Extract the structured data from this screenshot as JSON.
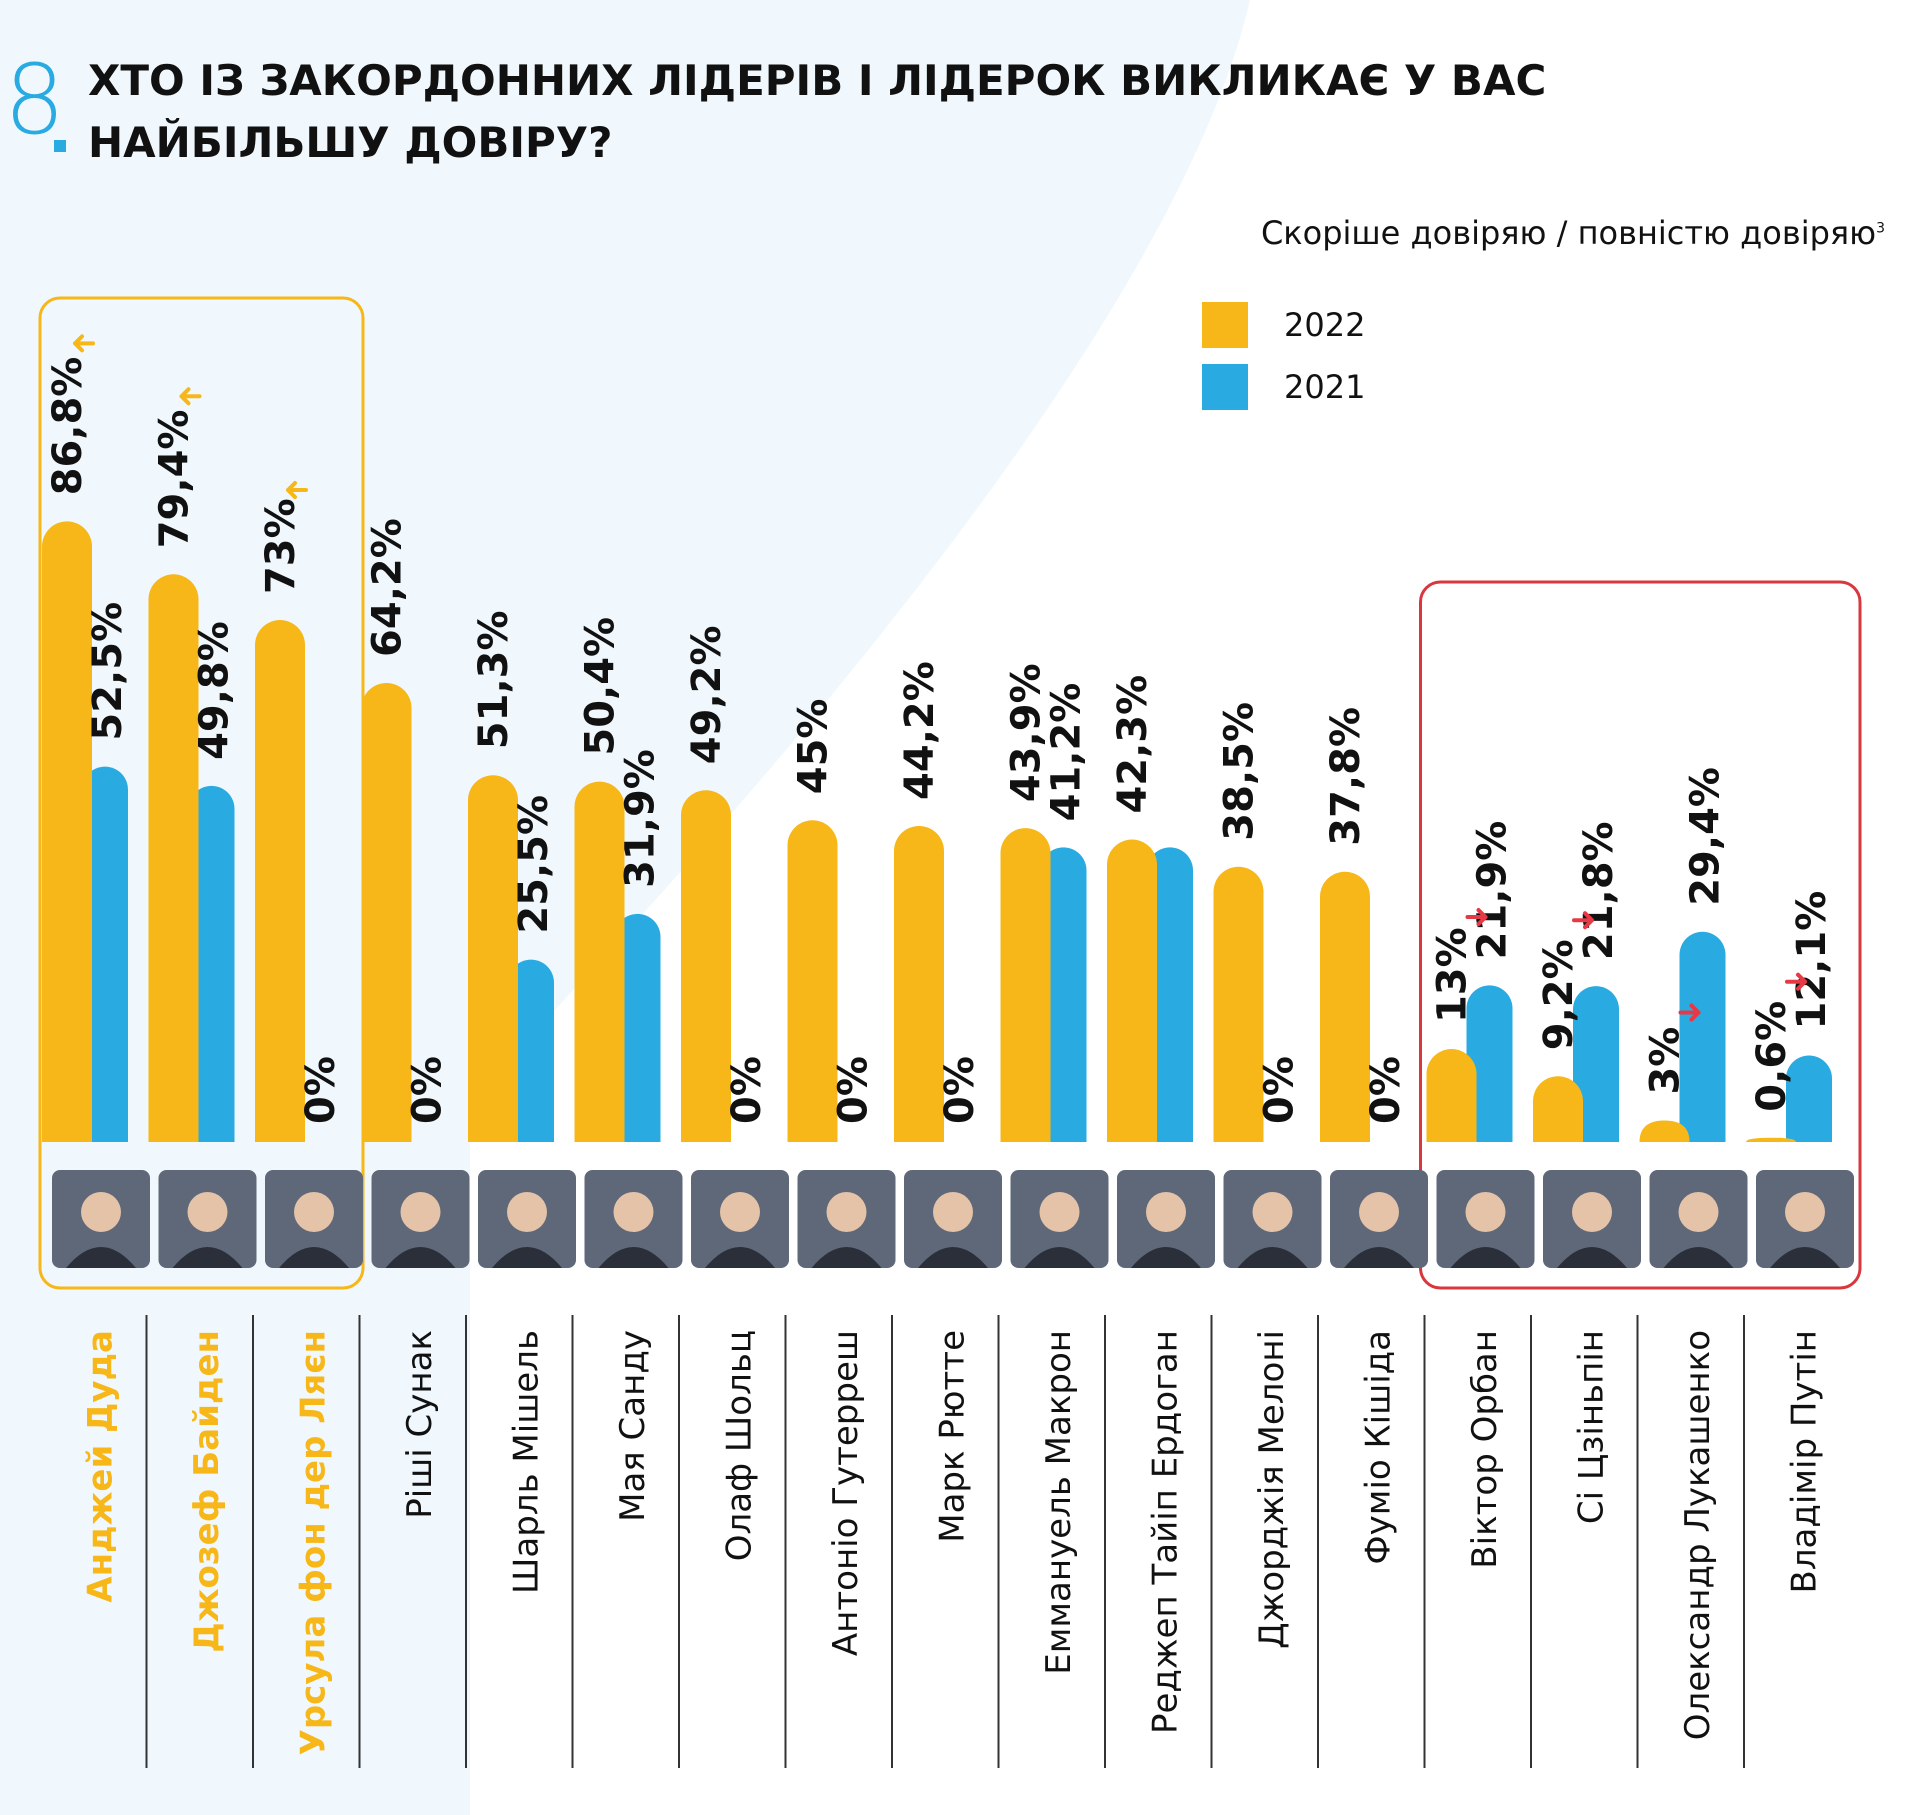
{
  "question_number": "8",
  "title": "ХТО ІЗ ЗАКОРДОННИХ ЛІДЕРІВ І ЛІДЕРОК ВИКЛИКАЄ У ВАС НАЙБІЛЬШУ ДОВІРУ?",
  "subtitle": "Скоріше довіряю / повністю довіряю",
  "subtitle_footnote": "3",
  "colors": {
    "y2022": "#F7B718",
    "y2021": "#29ABE2",
    "up_arrow": "#F7B718",
    "down_arrow": "#E63946",
    "top_box": "#F7B718",
    "bottom_box": "#D9373E"
  },
  "chart_data": {
    "type": "bar",
    "categories": [
      "Анджей Дуда",
      "Джозеф Байден",
      "Урсула фон дер Ляєн",
      "Ріші Сунак",
      "Шарль Мішель",
      "Мая Санду",
      "Олаф Шольц",
      "Антоніо Гутерреш",
      "Марк Рютте",
      "Еммануель Макрон",
      "Реджеп Тайіп Ердоган",
      "Джорджія Мелоні",
      "Фуміо Кішіда",
      "Віктор Орбан",
      "Сі Цзіньпін",
      "Олександр Лукашенко",
      "Владімір Путін"
    ],
    "series": [
      {
        "name": "2022",
        "values": [
          86.8,
          79.4,
          73,
          64.2,
          51.3,
          50.4,
          49.2,
          45,
          44.2,
          43.9,
          42.3,
          38.5,
          37.8,
          13,
          9.2,
          3,
          0.6
        ],
        "labels": [
          "86,8%",
          "79,4%",
          "73%",
          "64,2%",
          "51,3%",
          "50,4%",
          "49,2%",
          "45%",
          "44,2%",
          "43,9%",
          "42,3%",
          "38,5%",
          "37,8%",
          "13%",
          "9,2%",
          "3%",
          "0,6%"
        ]
      },
      {
        "name": "2021",
        "values": [
          52.5,
          49.8,
          0,
          0,
          25.5,
          31.9,
          0,
          0,
          0,
          41.2,
          41.2,
          0,
          0,
          21.9,
          21.8,
          29.4,
          12.1
        ],
        "labels": [
          "52,5%",
          "49,8%",
          "0%",
          "0%",
          "25,5%",
          "31,9%",
          "0%",
          "0%",
          "0%",
          "41,2%",
          "",
          "0%",
          "0%",
          "21,9%",
          "21,8%",
          "29,4%",
          "12,1%"
        ]
      }
    ],
    "trend_arrows": [
      "up",
      "up",
      "up",
      "",
      "",
      "",
      "",
      "",
      "",
      "",
      "",
      "",
      "",
      "down",
      "down",
      "down",
      "down"
    ],
    "highlighted_top": [
      0,
      1,
      2
    ],
    "highlighted_bottom": [
      13,
      14,
      15,
      16
    ],
    "ylim": [
      0,
      100
    ],
    "legend": [
      {
        "label": "2022",
        "color": "#F7B718"
      },
      {
        "label": "2021",
        "color": "#29ABE2"
      }
    ],
    "legend_position": "top-right"
  }
}
